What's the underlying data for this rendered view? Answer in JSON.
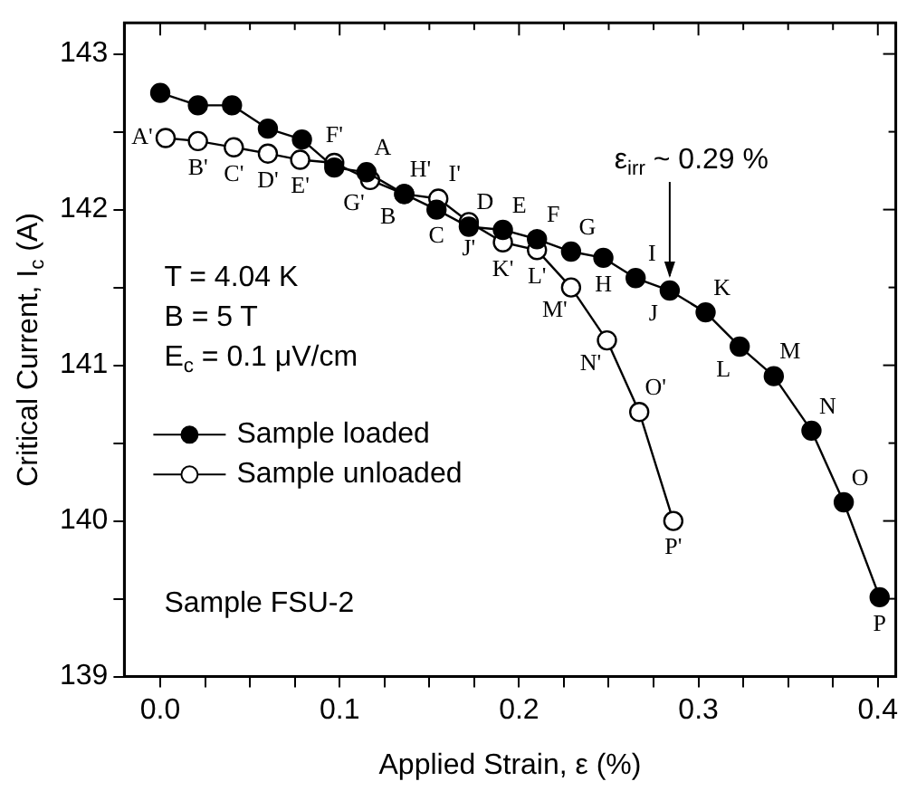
{
  "chart_data": {
    "type": "line",
    "xlabel": "Applied Strain, ε (%)",
    "ylabel": "Critical Current, I$_{c}$ (A)",
    "xlim": [
      -0.02,
      0.41
    ],
    "ylim": [
      139,
      143.2
    ],
    "xticks": [
      {
        "value": 0,
        "label": "0.0"
      },
      {
        "value": 0.025,
        "label": null
      },
      {
        "value": 0.05,
        "label": null
      },
      {
        "value": 0.075,
        "label": null
      },
      {
        "value": 0.1,
        "label": "0.1"
      },
      {
        "value": 0.125,
        "label": null
      },
      {
        "value": 0.15,
        "label": null
      },
      {
        "value": 0.175,
        "label": null
      },
      {
        "value": 0.2,
        "label": "0.2"
      },
      {
        "value": 0.225,
        "label": null
      },
      {
        "value": 0.25,
        "label": null
      },
      {
        "value": 0.275,
        "label": null
      },
      {
        "value": 0.3,
        "label": "0.3"
      },
      {
        "value": 0.325,
        "label": null
      },
      {
        "value": 0.35,
        "label": null
      },
      {
        "value": 0.375,
        "label": null
      },
      {
        "value": 0.4,
        "label": "0.4"
      }
    ],
    "yticks": [
      139,
      {
        "value": 139.5,
        "label": null
      },
      140,
      {
        "value": 140.5,
        "label": null
      },
      141,
      {
        "value": 141.5,
        "label": null
      },
      142,
      {
        "value": 142.5,
        "label": null
      },
      143
    ],
    "marker": "circle",
    "legend": "left",
    "series": [
      {
        "name": "Sample loaded",
        "color": "#000000",
        "x": [
          0,
          0.021,
          0.04,
          0.06,
          0.079,
          0.097,
          0.115,
          0.136,
          0.154,
          0.172,
          0.191,
          0.21,
          0.229,
          0.247,
          0.265,
          0.284,
          0.304,
          0.323,
          0.342,
          0.363,
          0.381,
          0.401
        ],
        "values": [
          142.75,
          142.67,
          142.67,
          142.52,
          142.45,
          142.27,
          142.24,
          142.1,
          142.0,
          141.89,
          141.87,
          141.81,
          141.73,
          141.69,
          141.56,
          141.48,
          141.34,
          141.12,
          140.93,
          140.58,
          140.12,
          139.51
        ],
        "value_labels": [
          null,
          null,
          null,
          null,
          null,
          null,
          "A",
          "B",
          "C",
          "D",
          "E",
          "F",
          "G",
          "H",
          "I",
          "J",
          "K",
          "L",
          "M",
          "N",
          "O",
          "P"
        ]
      },
      {
        "name": "Sample unloaded",
        "color": "#ffffff",
        "x": [
          0.003,
          0.021,
          0.041,
          0.06,
          0.078,
          0.097,
          0.117,
          0.136,
          0.155,
          0.172,
          0.191,
          0.21,
          0.229,
          0.249,
          0.267,
          0.286
        ],
        "values": [
          142.46,
          142.44,
          142.4,
          142.36,
          142.32,
          142.3,
          142.19,
          142.1,
          142.07,
          141.92,
          141.79,
          141.74,
          141.5,
          141.16,
          140.7,
          140.0
        ],
        "value_labels": [
          "A'",
          "B'",
          "C'",
          "D'",
          "E'",
          "F'",
          "G'",
          "H'",
          "I'",
          "J'",
          "K'",
          "L'",
          "M'",
          "N'",
          "O'",
          "P'"
        ]
      }
    ],
    "annotations": [
      {
        "text": "ε$_{irr}$ ~ 0.29 %",
        "x": 0.284,
        "y": 141.48
      },
      "T = 4.04 K",
      "B = 5 T",
      "E$_{c}$ = 0.1 μV/cm",
      "Sample FSU-2"
    ]
  }
}
